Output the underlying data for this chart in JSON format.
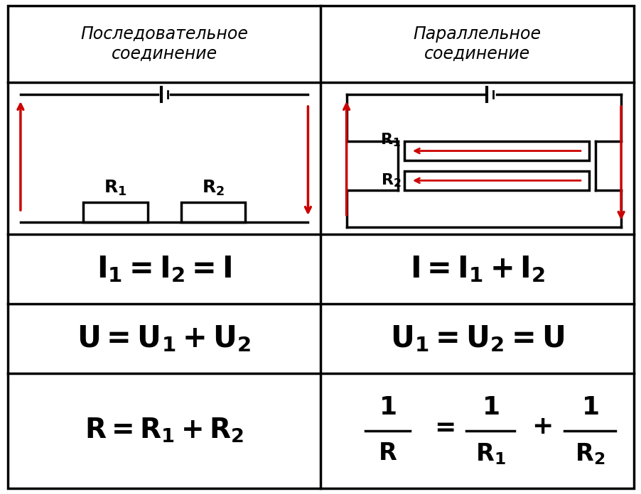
{
  "bg_color": "#ffffff",
  "border_color": "#000000",
  "text_color": "#000000",
  "red_color": "#cc0000",
  "title_left": "Последовательное\nсоединение",
  "title_right": "Параллельное\nсоединение",
  "col_div": 0.5,
  "row_divs": [
    0.0,
    0.158,
    0.474,
    0.618,
    0.762,
    1.0
  ],
  "title_fontsize": 17,
  "eq_fontsize_I": 30,
  "eq_fontsize_U": 30,
  "eq_fontsize_R": 28
}
